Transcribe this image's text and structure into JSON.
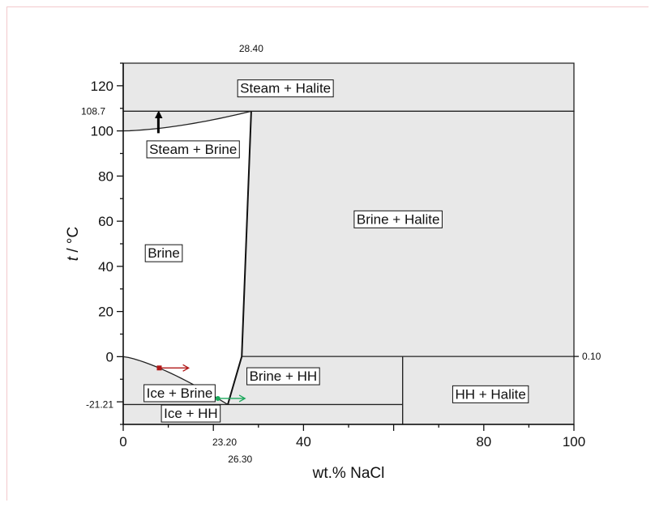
{
  "chart_data": {
    "type": "phase-diagram",
    "title": "",
    "xlabel": "wt.% NaCl",
    "ylabel_italic": "t",
    "ylabel_unit": " / °C",
    "xlim": [
      0,
      100
    ],
    "ylim": [
      -30,
      130
    ],
    "x_ticks": [
      0,
      40,
      80,
      100
    ],
    "y_ticks": [
      -20,
      0,
      20,
      40,
      60,
      80,
      100,
      120
    ],
    "special_labels": {
      "top_x": "28.40",
      "bottom_x_1": "23.20",
      "bottom_x_2": "26.30",
      "left_y_top": "108.7",
      "left_y_bottom": "-21.21",
      "right_y": "0.10"
    },
    "special_values": {
      "x_28_40": 28.4,
      "x_23_20": 23.2,
      "x_26_30": 26.3,
      "y_108_7": 108.7,
      "y_neg21_21": -21.21,
      "y_0_10": 0.1,
      "x_hh_halite_boundary": 62
    },
    "regions": [
      {
        "name": "Steam + Halite",
        "x": 36,
        "y": 119
      },
      {
        "name": "Steam + Brine",
        "x": 15.5,
        "y": 92
      },
      {
        "name": "Brine",
        "x": 9,
        "y": 46
      },
      {
        "name": "Brine + Halite",
        "x": 61,
        "y": 61
      },
      {
        "name": "Brine + HH",
        "x": 35.5,
        "y": -8.5
      },
      {
        "name": "Ice + Brine",
        "x": 12.5,
        "y": -16
      },
      {
        "name": "Ice + HH",
        "x": 15,
        "y": -25
      },
      {
        "name": "HH + Halite",
        "x": 81.5,
        "y": -16.5
      }
    ],
    "markers": [
      {
        "name": "red-arrow",
        "color": "#b01818",
        "x": 8,
        "y": -5,
        "dx": 6.5,
        "dy": 0
      },
      {
        "name": "green-arrow",
        "color": "#19a85a",
        "x": 21,
        "y": -18.5,
        "dx": 6,
        "dy": 0
      },
      {
        "name": "black-arrow",
        "color": "#000000",
        "x": 7.8,
        "y": 99,
        "dx": 0,
        "dy": 9
      }
    ]
  }
}
